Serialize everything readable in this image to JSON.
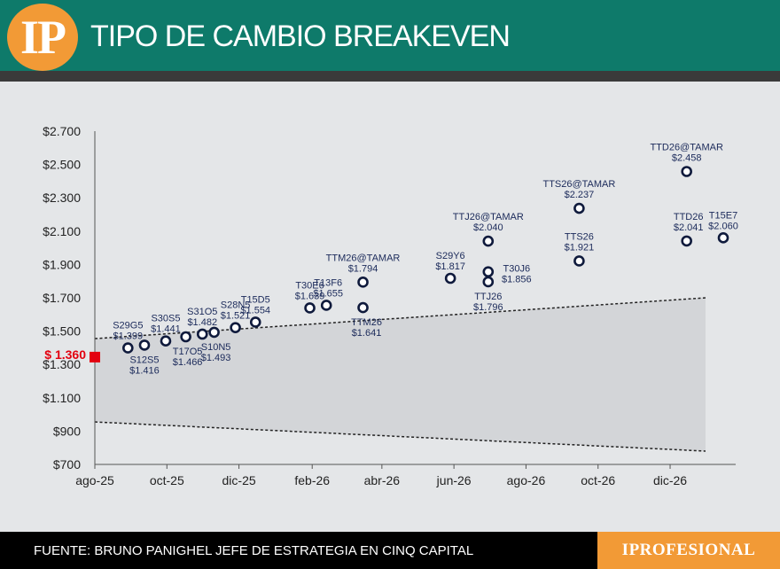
{
  "header": {
    "logo_text": "IP",
    "title": "TIPO DE CAMBIO BREAKEVEN"
  },
  "footer": {
    "source": "FUENTE: BRUNO PANIGHEL JEFE DE ESTRATEGIA EN CINQ CAPITAL",
    "brand": "IPROFESIONAL"
  },
  "colors": {
    "header_bg": "#0e7a6a",
    "accent_orange": "#f29a36",
    "marker": "#0f1a3c",
    "band_fill": "#d3d5d8",
    "spot_red": "#e3000f"
  },
  "chart_data": {
    "type": "scatter",
    "title": "TIPO DE CAMBIO BREAKEVEN",
    "ylim": [
      700,
      2700
    ],
    "y_ticks": [
      "$2.700",
      "$2.500",
      "$2.300",
      "$2.100",
      "$1.900",
      "$1.700",
      "$1.500",
      "$1.300",
      "$1.100",
      "$900",
      "$700"
    ],
    "x_ticks": [
      "ago-25",
      "oct-25",
      "dic-25",
      "feb-26",
      "abr-26",
      "jun-26",
      "ago-26",
      "oct-26",
      "dic-26"
    ],
    "spot": {
      "label": "$ 1.360",
      "value": 1360,
      "x": "2025-08-01"
    },
    "band": {
      "upper": [
        {
          "x": "2025-08-01",
          "y": 1455
        },
        {
          "x": "2026-12-31",
          "y": 1700
        }
      ],
      "lower": [
        {
          "x": "2025-08-01",
          "y": 955
        },
        {
          "x": "2026-12-31",
          "y": 780
        }
      ]
    },
    "points": [
      {
        "name": "S29G5",
        "value_label": "$1.399",
        "x": "2025-08-29",
        "y": 1399
      },
      {
        "name": "S12S5",
        "value_label": "$1.416",
        "x": "2025-09-12",
        "y": 1416
      },
      {
        "name": "S30S5",
        "value_label": "$1.441",
        "x": "2025-09-30",
        "y": 1441
      },
      {
        "name": "T17O5",
        "value_label": "$1.466",
        "x": "2025-10-17",
        "y": 1466
      },
      {
        "name": "S31O5",
        "value_label": "$1.482",
        "x": "2025-10-31",
        "y": 1482
      },
      {
        "name": "S10N5",
        "value_label": "$1.493",
        "x": "2025-11-10",
        "y": 1493
      },
      {
        "name": "S28N5",
        "value_label": "$1.521",
        "x": "2025-11-28",
        "y": 1521
      },
      {
        "name": "T15D5",
        "value_label": "$1.554",
        "x": "2025-12-15",
        "y": 1554
      },
      {
        "name": "T30E6",
        "value_label": "$1.639",
        "x": "2026-01-30",
        "y": 1639
      },
      {
        "name": "T13F6",
        "value_label": "$1.655",
        "x": "2026-02-13",
        "y": 1655
      },
      {
        "name": "TTM26@TAMAR",
        "value_label": "$1.794",
        "x": "2026-03-16",
        "y": 1794
      },
      {
        "name": "TTM26",
        "value_label": "$1.641",
        "x": "2026-03-16",
        "y": 1641
      },
      {
        "name": "S29Y6",
        "value_label": "$1.817",
        "x": "2026-05-29",
        "y": 1817
      },
      {
        "name": "TTJ26@TAMAR",
        "value_label": "$2.040",
        "x": "2026-06-30",
        "y": 2040
      },
      {
        "name": "T30J6",
        "value_label": "$1.856",
        "x": "2026-06-30",
        "y": 1856
      },
      {
        "name": "TTJ26",
        "value_label": "$1.796",
        "x": "2026-06-30",
        "y": 1796
      },
      {
        "name": "TTS26@TAMAR",
        "value_label": "$2.237",
        "x": "2026-09-15",
        "y": 2237
      },
      {
        "name": "TTS26",
        "value_label": "$1.921",
        "x": "2026-09-15",
        "y": 1921
      },
      {
        "name": "TTD26@TAMAR",
        "value_label": "$2.458",
        "x": "2026-12-15",
        "y": 2458
      },
      {
        "name": "TTD26",
        "value_label": "$2.041",
        "x": "2026-12-15",
        "y": 2041
      },
      {
        "name": "T15E7",
        "value_label": "$2.060",
        "x": "2027-01-15",
        "y": 2060
      }
    ]
  }
}
